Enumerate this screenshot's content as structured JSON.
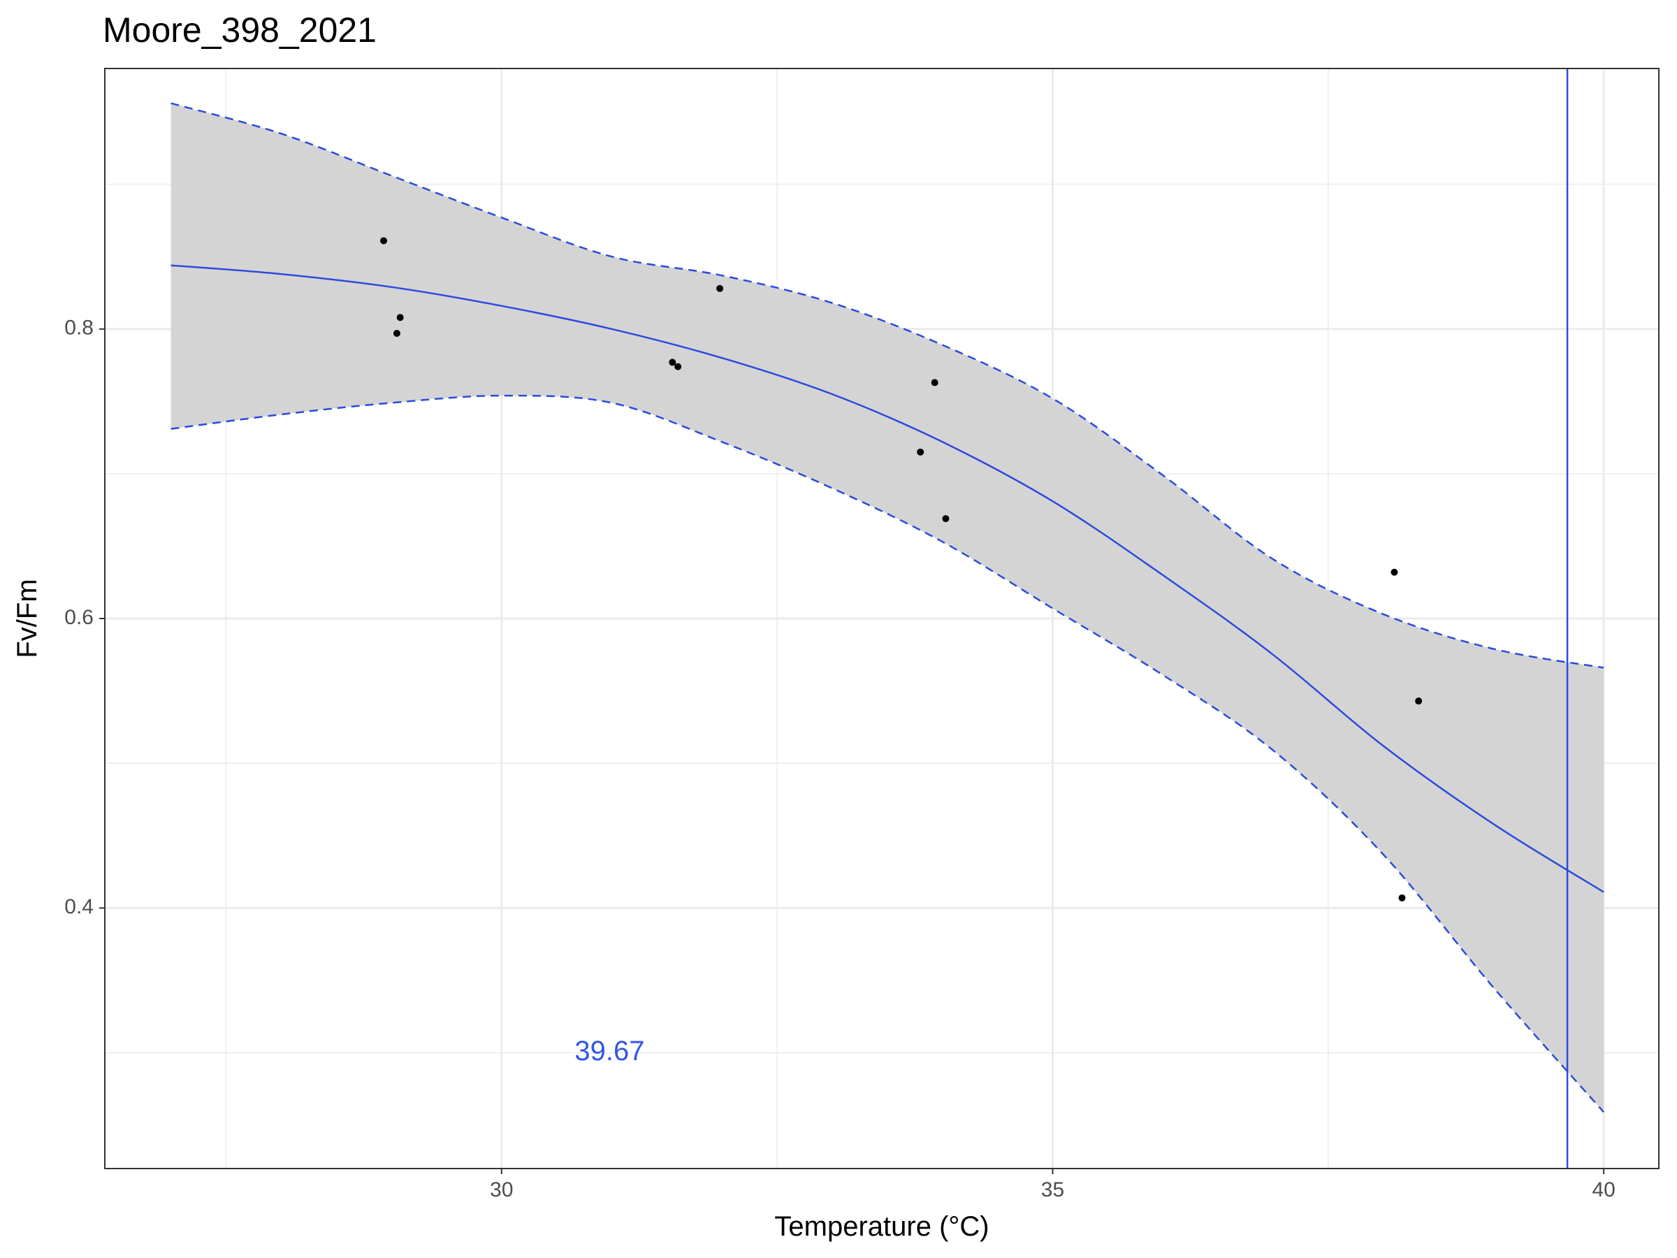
{
  "chart_data": {
    "type": "line",
    "title": "Moore_398_2021",
    "xlabel": "Temperature (°C)",
    "ylabel": "Fv/Fm",
    "xlim": [
      26.4,
      40.5
    ],
    "ylim": [
      0.22,
      0.98
    ],
    "x_ticks": [
      30,
      35,
      40
    ],
    "x_tick_labels": [
      "30",
      "35",
      "40"
    ],
    "x_minor_ticks": [
      27.5,
      32.5,
      37.5
    ],
    "y_ticks": [
      0.4,
      0.6,
      0.8
    ],
    "y_tick_labels": [
      "0.4",
      "0.6",
      "0.8"
    ],
    "y_minor_ticks": [
      0.3,
      0.5,
      0.7,
      0.9
    ],
    "grid": true,
    "points": [
      {
        "x": 28.93,
        "y": 0.861
      },
      {
        "x": 29.05,
        "y": 0.797
      },
      {
        "x": 29.08,
        "y": 0.808
      },
      {
        "x": 31.55,
        "y": 0.777
      },
      {
        "x": 31.6,
        "y": 0.774
      },
      {
        "x": 31.98,
        "y": 0.828
      },
      {
        "x": 33.8,
        "y": 0.715
      },
      {
        "x": 33.93,
        "y": 0.763
      },
      {
        "x": 34.03,
        "y": 0.669
      },
      {
        "x": 38.1,
        "y": 0.632
      },
      {
        "x": 38.17,
        "y": 0.407
      },
      {
        "x": 38.32,
        "y": 0.543
      }
    ],
    "fit": {
      "x": [
        27.0,
        28.0,
        29.0,
        30.0,
        31.0,
        32.0,
        33.0,
        34.0,
        35.0,
        36.0,
        37.0,
        38.0,
        39.0,
        40.0
      ],
      "y": [
        0.844,
        0.838,
        0.829,
        0.816,
        0.8,
        0.78,
        0.755,
        0.722,
        0.681,
        0.63,
        0.575,
        0.512,
        0.458,
        0.411
      ],
      "lower": [
        0.731,
        0.741,
        0.749,
        0.754,
        0.749,
        0.722,
        0.69,
        0.653,
        0.607,
        0.561,
        0.509,
        0.437,
        0.345,
        0.259
      ],
      "upper": [
        0.956,
        0.935,
        0.906,
        0.877,
        0.85,
        0.837,
        0.818,
        0.789,
        0.752,
        0.699,
        0.641,
        0.603,
        0.579,
        0.566
      ]
    },
    "threshold": {
      "x": 39.67,
      "label": "39.67",
      "label_x": 30.98,
      "label_y": 0.3
    },
    "colors": {
      "fit_line": "#2b4bdc",
      "ribbon": "#d4d4d4",
      "points": "#000000",
      "annotation": "#3355e8",
      "grid": "#ebebeb",
      "panel_border": "#333333"
    }
  }
}
